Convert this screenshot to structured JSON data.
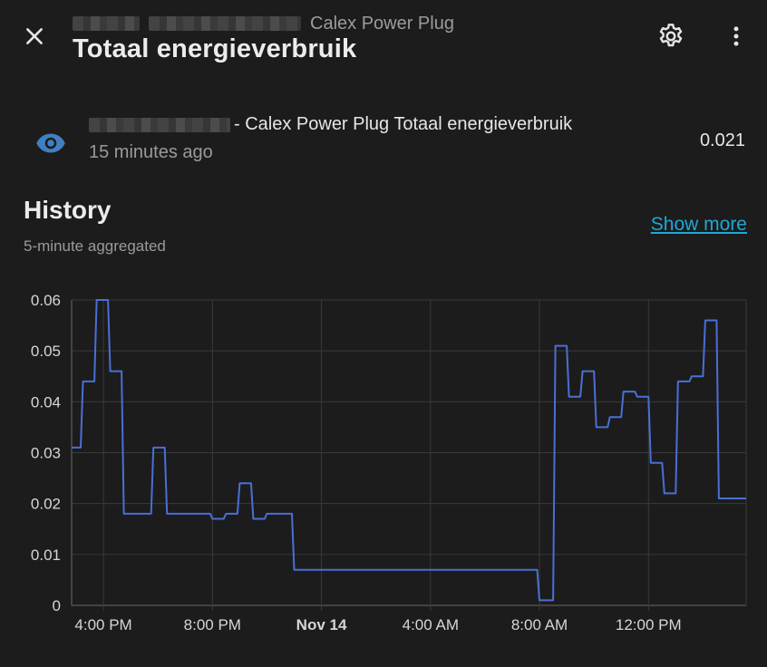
{
  "header": {
    "breadcrumb_device": "Calex Power Plug",
    "title": "Totaal energieverbruik",
    "icons": {
      "close": "close-icon",
      "settings": "gear-icon",
      "menu": "more-vert-icon"
    }
  },
  "entity": {
    "name_suffix": "- Calex Power Plug Totaal energieverbruik",
    "last_changed": "15 minutes ago",
    "value": "0.021",
    "icon": "eye-icon",
    "icon_color": "#3f80c4"
  },
  "history": {
    "title": "History",
    "subtitle": "5-minute aggregated",
    "show_more_label": "Show more"
  },
  "chart_data": {
    "type": "line",
    "title": "",
    "xlabel": "",
    "ylabel": "",
    "line_color": "#4a6fd6",
    "grid": true,
    "ylim": [
      0,
      0.06
    ],
    "y_ticks": [
      "0",
      "0.01",
      "0.02",
      "0.03",
      "0.04",
      "0.05",
      "0.06"
    ],
    "x_range": [
      "2023-11-13 14:50",
      "2023-11-14 15:35"
    ],
    "x_ticks": [
      {
        "label": "4:00 PM",
        "t": "2023-11-13 16:00",
        "bold": false
      },
      {
        "label": "8:00 PM",
        "t": "2023-11-13 20:00",
        "bold": false
      },
      {
        "label": "Nov 14",
        "t": "2023-11-14 00:00",
        "bold": true
      },
      {
        "label": "4:00 AM",
        "t": "2023-11-14 04:00",
        "bold": false
      },
      {
        "label": "8:00 AM",
        "t": "2023-11-14 08:00",
        "bold": false
      },
      {
        "label": "12:00 PM",
        "t": "2023-11-14 12:00",
        "bold": false
      }
    ],
    "series": [
      {
        "points": [
          [
            "2023-11-13 14:50",
            0.031
          ],
          [
            "2023-11-13 15:10",
            0.031
          ],
          [
            "2023-11-13 15:15",
            0.044
          ],
          [
            "2023-11-13 15:40",
            0.044
          ],
          [
            "2023-11-13 15:45",
            0.06
          ],
          [
            "2023-11-13 16:10",
            0.06
          ],
          [
            "2023-11-13 16:15",
            0.046
          ],
          [
            "2023-11-13 16:40",
            0.046
          ],
          [
            "2023-11-13 16:45",
            0.018
          ],
          [
            "2023-11-13 17:45",
            0.018
          ],
          [
            "2023-11-13 17:50",
            0.031
          ],
          [
            "2023-11-13 18:15",
            0.031
          ],
          [
            "2023-11-13 18:20",
            0.018
          ],
          [
            "2023-11-13 19:55",
            0.018
          ],
          [
            "2023-11-13 20:00",
            0.017
          ],
          [
            "2023-11-13 20:25",
            0.017
          ],
          [
            "2023-11-13 20:30",
            0.018
          ],
          [
            "2023-11-13 20:55",
            0.018
          ],
          [
            "2023-11-13 21:00",
            0.024
          ],
          [
            "2023-11-13 21:25",
            0.024
          ],
          [
            "2023-11-13 21:30",
            0.017
          ],
          [
            "2023-11-13 21:55",
            0.017
          ],
          [
            "2023-11-13 22:00",
            0.018
          ],
          [
            "2023-11-13 22:55",
            0.018
          ],
          [
            "2023-11-13 23:00",
            0.007
          ],
          [
            "2023-11-14 07:55",
            0.007
          ],
          [
            "2023-11-14 08:00",
            0.001
          ],
          [
            "2023-11-14 08:30",
            0.001
          ],
          [
            "2023-11-14 08:35",
            0.051
          ],
          [
            "2023-11-14 09:00",
            0.051
          ],
          [
            "2023-11-14 09:05",
            0.041
          ],
          [
            "2023-11-14 09:30",
            0.041
          ],
          [
            "2023-11-14 09:35",
            0.046
          ],
          [
            "2023-11-14 10:00",
            0.046
          ],
          [
            "2023-11-14 10:05",
            0.035
          ],
          [
            "2023-11-14 10:30",
            0.035
          ],
          [
            "2023-11-14 10:35",
            0.037
          ],
          [
            "2023-11-14 11:00",
            0.037
          ],
          [
            "2023-11-14 11:05",
            0.042
          ],
          [
            "2023-11-14 11:30",
            0.042
          ],
          [
            "2023-11-14 11:35",
            0.041
          ],
          [
            "2023-11-14 12:00",
            0.041
          ],
          [
            "2023-11-14 12:05",
            0.028
          ],
          [
            "2023-11-14 12:30",
            0.028
          ],
          [
            "2023-11-14 12:35",
            0.022
          ],
          [
            "2023-11-14 13:00",
            0.022
          ],
          [
            "2023-11-14 13:05",
            0.044
          ],
          [
            "2023-11-14 13:30",
            0.044
          ],
          [
            "2023-11-14 13:35",
            0.045
          ],
          [
            "2023-11-14 14:00",
            0.045
          ],
          [
            "2023-11-14 14:05",
            0.056
          ],
          [
            "2023-11-14 14:30",
            0.056
          ],
          [
            "2023-11-14 14:35",
            0.021
          ],
          [
            "2023-11-14 15:35",
            0.021
          ]
        ]
      }
    ]
  }
}
